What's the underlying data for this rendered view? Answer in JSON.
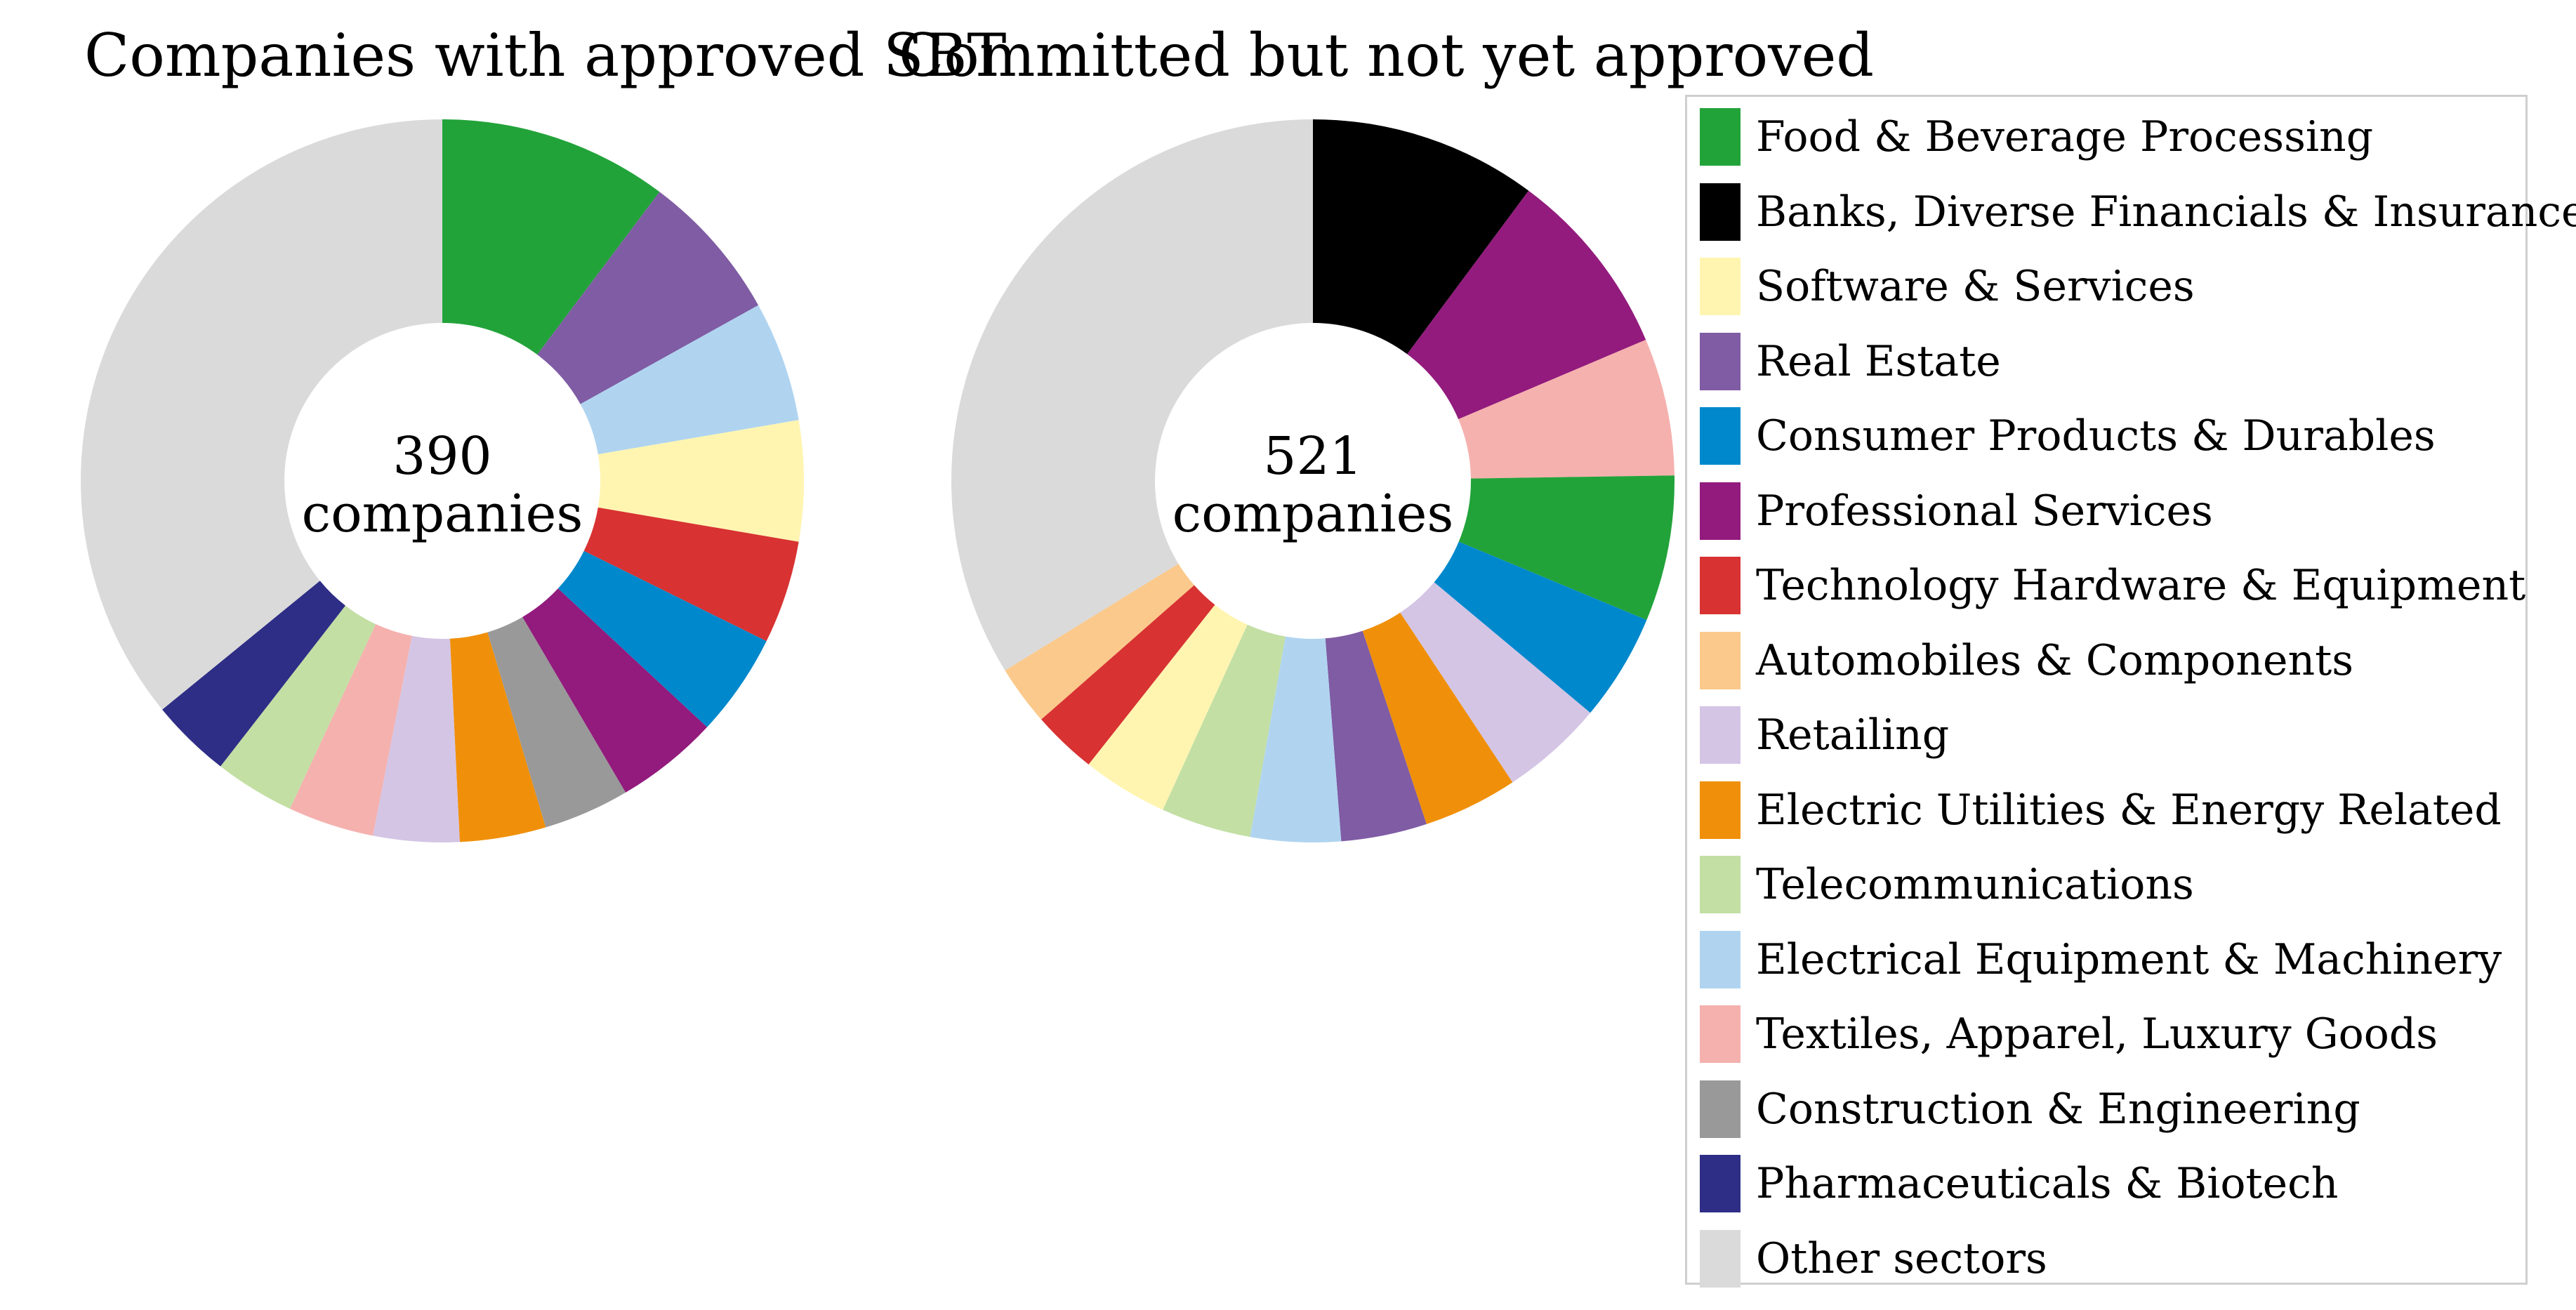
{
  "chart_data": {
    "type": "pie",
    "legend_position": "right",
    "sectors": [
      {
        "name": "Food & Beverage Processing",
        "color": "#22a33a"
      },
      {
        "name": "Banks, Diverse Financials & Insurance",
        "color": "#000000"
      },
      {
        "name": "Software & Services",
        "color": "#fff5b1"
      },
      {
        "name": "Real Estate",
        "color": "#7f5ca4"
      },
      {
        "name": "Consumer Products & Durables",
        "color": "#0088cc"
      },
      {
        "name": "Professional Services",
        "color": "#921b7d"
      },
      {
        "name": "Technology Hardware & Equipment",
        "color": "#d83232"
      },
      {
        "name": "Automobiles & Components",
        "color": "#fbc98b"
      },
      {
        "name": "Retailing",
        "color": "#d4c5e5"
      },
      {
        "name": "Electric Utilities & Energy Related",
        "color": "#f0900a"
      },
      {
        "name": "Telecommunications",
        "color": "#c3dfa4"
      },
      {
        "name": "Electrical Equipment & Machinery",
        "color": "#b0d4f0"
      },
      {
        "name": "Textiles, Apparel, Luxury Goods",
        "color": "#f5b1ae"
      },
      {
        "name": "Construction & Engineering",
        "color": "#999999"
      },
      {
        "name": "Pharmaceuticals & Biotech",
        "color": "#2e2e86"
      },
      {
        "name": "Other sectors",
        "color": "#dadada"
      }
    ],
    "charts": [
      {
        "title": "Companies with approved SBT",
        "center_number": "390",
        "center_unit": "companies",
        "total": 390,
        "slices": [
          {
            "sector": "Food & Beverage Processing",
            "value": 40
          },
          {
            "sector": "Real Estate",
            "value": 26
          },
          {
            "sector": "Electrical Equipment & Machinery",
            "value": 21
          },
          {
            "sector": "Software & Services",
            "value": 21
          },
          {
            "sector": "Technology Hardware & Equipment",
            "value": 18
          },
          {
            "sector": "Consumer Products & Durables",
            "value": 18
          },
          {
            "sector": "Professional Services",
            "value": 18
          },
          {
            "sector": "Construction & Engineering",
            "value": 15
          },
          {
            "sector": "Electric Utilities & Energy Related",
            "value": 15
          },
          {
            "sector": "Retailing",
            "value": 15
          },
          {
            "sector": "Textiles, Apparel, Luxury Goods",
            "value": 15
          },
          {
            "sector": "Telecommunications",
            "value": 14
          },
          {
            "sector": "Pharmaceuticals & Biotech",
            "value": 14
          },
          {
            "sector": "Other sectors",
            "value": 140
          }
        ]
      },
      {
        "title": "Committed but not yet approved",
        "center_number": "521",
        "center_unit": "companies",
        "total": 521,
        "slices": [
          {
            "sector": "Banks, Diverse Financials & Insurance",
            "value": 53
          },
          {
            "sector": "Professional Services",
            "value": 44
          },
          {
            "sector": "Textiles, Apparel, Luxury Goods",
            "value": 32
          },
          {
            "sector": "Food & Beverage Processing",
            "value": 34
          },
          {
            "sector": "Consumer Products & Durables",
            "value": 25
          },
          {
            "sector": "Retailing",
            "value": 24
          },
          {
            "sector": "Electric Utilities & Energy Related",
            "value": 22
          },
          {
            "sector": "Real Estate",
            "value": 20
          },
          {
            "sector": "Electrical Equipment & Machinery",
            "value": 21
          },
          {
            "sector": "Telecommunications",
            "value": 21
          },
          {
            "sector": "Software & Services",
            "value": 20
          },
          {
            "sector": "Technology Hardware & Equipment",
            "value": 15
          },
          {
            "sector": "Automobiles & Components",
            "value": 14
          },
          {
            "sector": "Other sectors",
            "value": 176
          }
        ]
      }
    ]
  }
}
